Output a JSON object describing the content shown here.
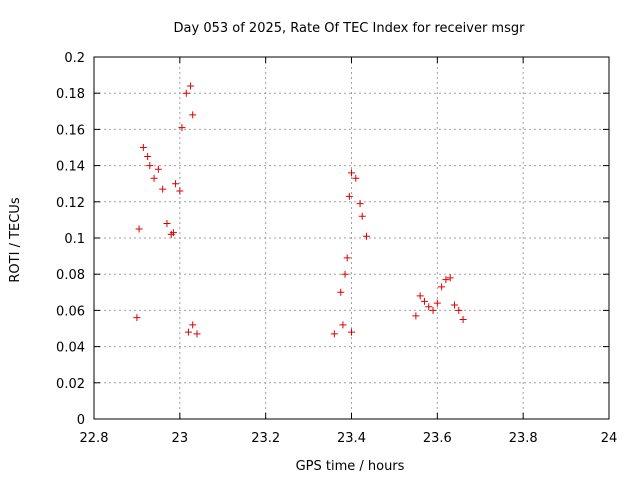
{
  "chart_data": {
    "type": "scatter",
    "title": "Day 053 of 2025, Rate Of TEC Index for receiver msgr",
    "xlabel": "GPS time / hours",
    "ylabel": "ROTI / TECUs",
    "xlim": [
      22.8,
      24
    ],
    "ylim": [
      0,
      0.2
    ],
    "x_ticks": [
      22.8,
      23,
      23.2,
      23.4,
      23.6,
      23.8,
      24
    ],
    "x_tick_labels": [
      "22.8",
      "23",
      "23.2",
      "23.4",
      "23.6",
      "23.8",
      "24"
    ],
    "y_ticks": [
      0,
      0.02,
      0.04,
      0.06,
      0.08,
      0.1,
      0.12,
      0.14,
      0.16,
      0.18,
      0.2
    ],
    "y_tick_labels": [
      "0",
      "0.02",
      "0.04",
      "0.06",
      "0.08",
      "0.1",
      "0.12",
      "0.14",
      "0.16",
      "0.18",
      "0.2"
    ],
    "grid": true,
    "marker": "+",
    "color": "#e00000",
    "series": [
      {
        "name": "msgr",
        "points": [
          [
            22.905,
            0.105
          ],
          [
            22.915,
            0.15
          ],
          [
            22.925,
            0.145
          ],
          [
            22.93,
            0.14
          ],
          [
            22.94,
            0.133
          ],
          [
            22.95,
            0.138
          ],
          [
            22.96,
            0.127
          ],
          [
            22.97,
            0.108
          ],
          [
            22.98,
            0.102
          ],
          [
            22.985,
            0.103
          ],
          [
            22.99,
            0.13
          ],
          [
            23.0,
            0.126
          ],
          [
            23.005,
            0.161
          ],
          [
            23.015,
            0.18
          ],
          [
            23.025,
            0.184
          ],
          [
            23.03,
            0.168
          ],
          [
            22.9,
            0.056
          ],
          [
            23.375,
            0.07
          ],
          [
            23.385,
            0.08
          ],
          [
            23.39,
            0.089
          ],
          [
            23.395,
            0.123
          ],
          [
            23.4,
            0.136
          ],
          [
            23.41,
            0.133
          ],
          [
            23.42,
            0.119
          ],
          [
            23.425,
            0.112
          ],
          [
            23.435,
            0.101
          ],
          [
            23.55,
            0.057
          ],
          [
            23.56,
            0.068
          ],
          [
            23.57,
            0.065
          ],
          [
            23.58,
            0.062
          ],
          [
            23.59,
            0.06
          ],
          [
            23.6,
            0.064
          ],
          [
            23.61,
            0.073
          ],
          [
            23.62,
            0.077
          ],
          [
            23.63,
            0.078
          ],
          [
            23.64,
            0.063
          ],
          [
            23.65,
            0.06
          ],
          [
            23.66,
            0.055
          ],
          [
            23.03,
            0.052
          ],
          [
            23.04,
            0.047
          ],
          [
            23.02,
            0.048
          ],
          [
            23.38,
            0.052
          ],
          [
            23.36,
            0.047
          ],
          [
            23.4,
            0.048
          ]
        ]
      }
    ]
  }
}
